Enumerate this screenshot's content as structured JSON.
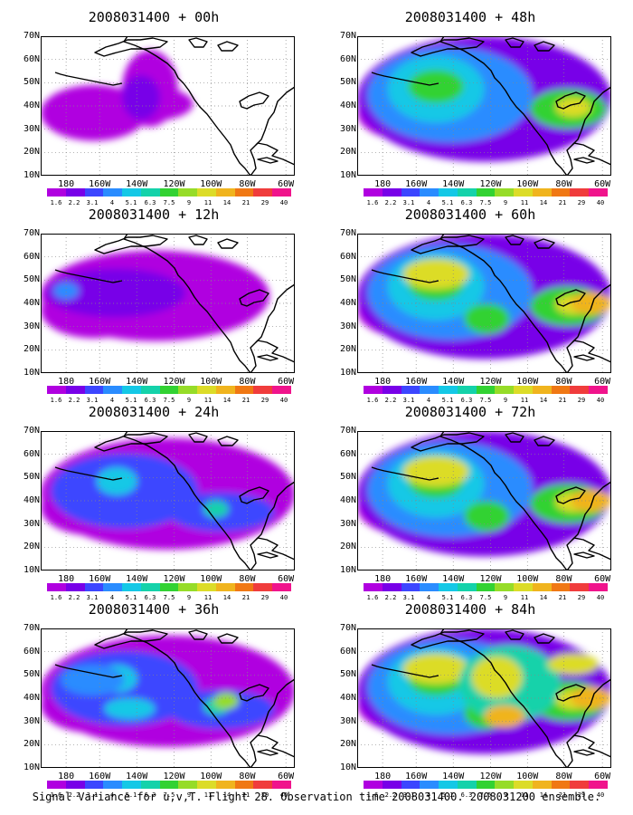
{
  "panels": [
    {
      "title": "2008031400 + 00h",
      "level": 0
    },
    {
      "title": "2008031400 + 12h",
      "level": 1
    },
    {
      "title": "2008031400 + 24h",
      "level": 2
    },
    {
      "title": "2008031400 + 36h",
      "level": 3
    },
    {
      "title": "2008031400 + 48h",
      "level": 4
    },
    {
      "title": "2008031400 + 60h",
      "level": 5
    },
    {
      "title": "2008031400 + 72h",
      "level": 5
    },
    {
      "title": "2008031400 + 84h",
      "level": 6
    }
  ],
  "lat_labels": [
    "70N",
    "60N",
    "50N",
    "40N",
    "30N",
    "20N",
    "10N"
  ],
  "lon_labels": [
    "180",
    "160W",
    "140W",
    "120W",
    "100W",
    "80W",
    "60W"
  ],
  "colorbar": {
    "labels": [
      "1.6",
      "2.2",
      "3.1",
      "4",
      "5.1",
      "6.3",
      "7.5",
      "9",
      "11",
      "14",
      "21",
      "29",
      "40"
    ],
    "colors": [
      "#b000e0",
      "#7800e8",
      "#3c46ff",
      "#2a8cff",
      "#14c8e6",
      "#14d2aa",
      "#32d232",
      "#96dc28",
      "#dcdc28",
      "#f0b41e",
      "#f07814",
      "#f03c3c",
      "#f0148c"
    ]
  },
  "caption": "Signal Variance for u,v,T. Flight 28. Observation time 2008031400. 2008031200 ensemble."
}
